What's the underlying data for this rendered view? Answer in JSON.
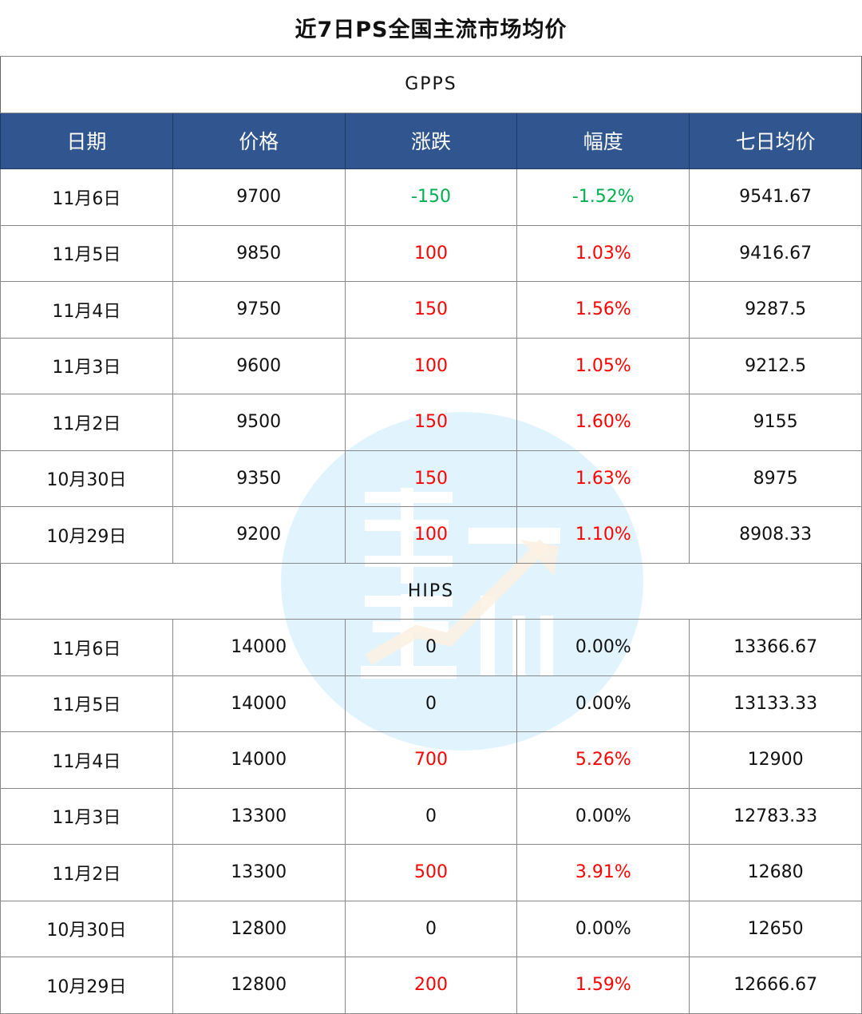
{
  "title": "近7日PS全国主流市场均价",
  "watermark": "第一塑价",
  "colors": {
    "header_bg": "#30558f",
    "up": "#ff0000",
    "down": "#00b050",
    "watermark_circle": "#e1f4fd"
  },
  "columns": [
    "日期",
    "价格",
    "涨跌",
    "幅度",
    "七日均价"
  ],
  "sections": [
    {
      "name": "GPPS",
      "rows": [
        {
          "date": "11月6日",
          "price": "9700",
          "change": "-150",
          "pct": "-1.52%",
          "avg": "9541.67",
          "dir": "down"
        },
        {
          "date": "11月5日",
          "price": "9850",
          "change": "100",
          "pct": "1.03%",
          "avg": "9416.67",
          "dir": "up"
        },
        {
          "date": "11月4日",
          "price": "9750",
          "change": "150",
          "pct": "1.56%",
          "avg": "9287.5",
          "dir": "up"
        },
        {
          "date": "11月3日",
          "price": "9600",
          "change": "100",
          "pct": "1.05%",
          "avg": "9212.5",
          "dir": "up"
        },
        {
          "date": "11月2日",
          "price": "9500",
          "change": "150",
          "pct": "1.60%",
          "avg": "9155",
          "dir": "up"
        },
        {
          "date": "10月30日",
          "price": "9350",
          "change": "150",
          "pct": "1.63%",
          "avg": "8975",
          "dir": "up"
        },
        {
          "date": "10月29日",
          "price": "9200",
          "change": "100",
          "pct": "1.10%",
          "avg": "8908.33",
          "dir": "up"
        }
      ]
    },
    {
      "name": "HIPS",
      "rows": [
        {
          "date": "11月6日",
          "price": "14000",
          "change": "0",
          "pct": "0.00%",
          "avg": "13366.67",
          "dir": "flat"
        },
        {
          "date": "11月5日",
          "price": "14000",
          "change": "0",
          "pct": "0.00%",
          "avg": "13133.33",
          "dir": "flat"
        },
        {
          "date": "11月4日",
          "price": "14000",
          "change": "700",
          "pct": "5.26%",
          "avg": "12900",
          "dir": "up"
        },
        {
          "date": "11月3日",
          "price": "13300",
          "change": "0",
          "pct": "0.00%",
          "avg": "12783.33",
          "dir": "flat"
        },
        {
          "date": "11月2日",
          "price": "13300",
          "change": "500",
          "pct": "3.91%",
          "avg": "12680",
          "dir": "up"
        },
        {
          "date": "10月30日",
          "price": "12800",
          "change": "0",
          "pct": "0.00%",
          "avg": "12650",
          "dir": "flat"
        },
        {
          "date": "10月29日",
          "price": "12800",
          "change": "200",
          "pct": "1.59%",
          "avg": "12666.67",
          "dir": "up"
        }
      ]
    }
  ]
}
